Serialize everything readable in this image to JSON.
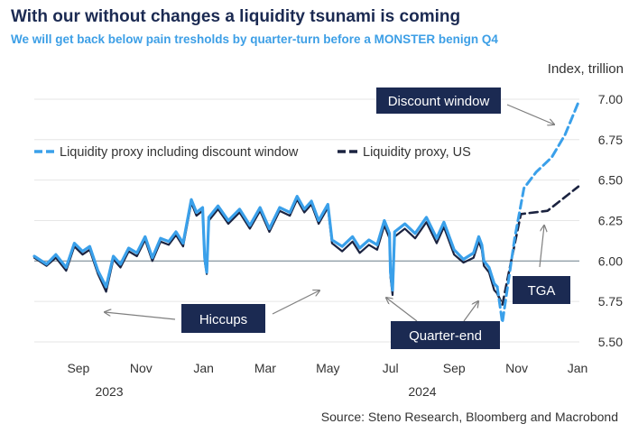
{
  "header": {
    "title": "With our without changes a liquidity tsunami is coming",
    "subtitle": "We will get back below pain tresholds by quarter-turn before a MONSTER benign Q4"
  },
  "source": "Source: Steno Research, Bloomberg and Macrobond",
  "colors": {
    "light_series": "#3aa0ea",
    "dark_series": "#1b2340",
    "box": "#1b2a52",
    "refline": "#7f8f99"
  },
  "chart_data": {
    "type": "line",
    "title": "With our without changes a liquidity tsunami is coming",
    "subtitle": "We will get back below pain tresholds by quarter-turn before a MONSTER benign Q4",
    "ylabel": "Index, trillion",
    "ylim": [
      5.45,
      7.1
    ],
    "y_ticks": [
      "5.50",
      "5.75",
      "6.00",
      "6.25",
      "6.50",
      "6.75",
      "7.00"
    ],
    "x_start": "2023-07-20",
    "x_end": "2025-01-01",
    "x_ticks": [
      "Sep",
      "Nov",
      "Jan",
      "Mar",
      "May",
      "Jul",
      "Sep",
      "Nov",
      "Jan"
    ],
    "x_years": [
      "2023",
      "2024"
    ],
    "reference_line": 6.0,
    "legend": [
      "Liquidity proxy including discount window",
      "Liquidity proxy, US"
    ],
    "series": [
      {
        "name": "Liquidity proxy including discount window",
        "style": "solid",
        "points": [
          [
            "2023-07-20",
            6.03
          ],
          [
            "2023-08-01",
            5.98
          ],
          [
            "2023-08-10",
            6.04
          ],
          [
            "2023-08-20",
            5.96
          ],
          [
            "2023-08-28",
            6.11
          ],
          [
            "2023-09-05",
            6.06
          ],
          [
            "2023-09-12",
            6.09
          ],
          [
            "2023-09-20",
            5.94
          ],
          [
            "2023-09-28",
            5.84
          ],
          [
            "2023-10-05",
            6.03
          ],
          [
            "2023-10-12",
            5.98
          ],
          [
            "2023-10-20",
            6.08
          ],
          [
            "2023-10-28",
            6.05
          ],
          [
            "2023-11-05",
            6.15
          ],
          [
            "2023-11-12",
            6.02
          ],
          [
            "2023-11-20",
            6.14
          ],
          [
            "2023-11-28",
            6.12
          ],
          [
            "2023-12-05",
            6.18
          ],
          [
            "2023-12-12",
            6.11
          ],
          [
            "2023-12-20",
            6.38
          ],
          [
            "2023-12-25",
            6.3
          ],
          [
            "2023-12-31",
            6.33
          ],
          [
            "2024-01-02",
            6.02
          ],
          [
            "2024-01-04",
            5.93
          ],
          [
            "2024-01-06",
            6.27
          ],
          [
            "2024-01-15",
            6.34
          ],
          [
            "2024-01-25",
            6.25
          ],
          [
            "2024-02-05",
            6.32
          ],
          [
            "2024-02-15",
            6.22
          ],
          [
            "2024-02-25",
            6.33
          ],
          [
            "2024-03-05",
            6.2
          ],
          [
            "2024-03-15",
            6.33
          ],
          [
            "2024-03-25",
            6.3
          ],
          [
            "2024-04-01",
            6.4
          ],
          [
            "2024-04-08",
            6.32
          ],
          [
            "2024-04-15",
            6.37
          ],
          [
            "2024-04-22",
            6.25
          ],
          [
            "2024-05-01",
            6.35
          ],
          [
            "2024-05-05",
            6.13
          ],
          [
            "2024-05-15",
            6.09
          ],
          [
            "2024-05-25",
            6.15
          ],
          [
            "2024-06-01",
            6.08
          ],
          [
            "2024-06-10",
            6.13
          ],
          [
            "2024-06-18",
            6.1
          ],
          [
            "2024-06-25",
            6.25
          ],
          [
            "2024-06-30",
            6.17
          ],
          [
            "2024-07-01",
            5.93
          ],
          [
            "2024-07-03",
            5.82
          ],
          [
            "2024-07-05",
            6.18
          ],
          [
            "2024-07-15",
            6.23
          ],
          [
            "2024-07-25",
            6.17
          ],
          [
            "2024-08-05",
            6.27
          ],
          [
            "2024-08-15",
            6.14
          ],
          [
            "2024-08-22",
            6.24
          ],
          [
            "2024-09-01",
            6.07
          ],
          [
            "2024-09-10",
            6.01
          ],
          [
            "2024-09-20",
            6.05
          ],
          [
            "2024-09-25",
            6.15
          ],
          [
            "2024-09-28",
            6.1
          ],
          [
            "2024-09-30",
            6.0
          ],
          [
            "2024-10-05",
            5.96
          ],
          [
            "2024-10-10",
            5.86
          ],
          [
            "2024-10-13",
            5.84
          ]
        ]
      },
      {
        "name": "Liquidity proxy, US",
        "style": "solid",
        "points": [
          [
            "2023-07-20",
            6.02
          ],
          [
            "2023-08-01",
            5.97
          ],
          [
            "2023-08-10",
            6.02
          ],
          [
            "2023-08-20",
            5.94
          ],
          [
            "2023-08-28",
            6.09
          ],
          [
            "2023-09-05",
            6.04
          ],
          [
            "2023-09-12",
            6.07
          ],
          [
            "2023-09-20",
            5.92
          ],
          [
            "2023-09-28",
            5.81
          ],
          [
            "2023-10-05",
            6.01
          ],
          [
            "2023-10-12",
            5.96
          ],
          [
            "2023-10-20",
            6.06
          ],
          [
            "2023-10-28",
            6.03
          ],
          [
            "2023-11-05",
            6.13
          ],
          [
            "2023-11-12",
            6.0
          ],
          [
            "2023-11-20",
            6.12
          ],
          [
            "2023-11-28",
            6.1
          ],
          [
            "2023-12-05",
            6.16
          ],
          [
            "2023-12-12",
            6.09
          ],
          [
            "2023-12-20",
            6.36
          ],
          [
            "2023-12-25",
            6.28
          ],
          [
            "2023-12-31",
            6.31
          ],
          [
            "2024-01-02",
            6.0
          ],
          [
            "2024-01-04",
            5.92
          ],
          [
            "2024-01-06",
            6.25
          ],
          [
            "2024-01-15",
            6.32
          ],
          [
            "2024-01-25",
            6.23
          ],
          [
            "2024-02-05",
            6.3
          ],
          [
            "2024-02-15",
            6.2
          ],
          [
            "2024-02-25",
            6.31
          ],
          [
            "2024-03-05",
            6.18
          ],
          [
            "2024-03-15",
            6.31
          ],
          [
            "2024-03-25",
            6.28
          ],
          [
            "2024-04-01",
            6.38
          ],
          [
            "2024-04-08",
            6.3
          ],
          [
            "2024-04-15",
            6.35
          ],
          [
            "2024-04-22",
            6.23
          ],
          [
            "2024-05-01",
            6.33
          ],
          [
            "2024-05-05",
            6.11
          ],
          [
            "2024-05-15",
            6.06
          ],
          [
            "2024-05-25",
            6.12
          ],
          [
            "2024-06-01",
            6.05
          ],
          [
            "2024-06-10",
            6.1
          ],
          [
            "2024-06-18",
            6.07
          ],
          [
            "2024-06-25",
            6.22
          ],
          [
            "2024-06-30",
            6.14
          ],
          [
            "2024-07-01",
            5.9
          ],
          [
            "2024-07-03",
            5.79
          ],
          [
            "2024-07-05",
            6.15
          ],
          [
            "2024-07-15",
            6.2
          ],
          [
            "2024-07-25",
            6.14
          ],
          [
            "2024-08-05",
            6.24
          ],
          [
            "2024-08-15",
            6.11
          ],
          [
            "2024-08-22",
            6.21
          ],
          [
            "2024-09-01",
            6.04
          ],
          [
            "2024-09-10",
            5.99
          ],
          [
            "2024-09-20",
            6.02
          ],
          [
            "2024-09-25",
            6.12
          ],
          [
            "2024-09-28",
            6.07
          ],
          [
            "2024-09-30",
            5.97
          ],
          [
            "2024-10-05",
            5.93
          ],
          [
            "2024-10-10",
            5.82
          ],
          [
            "2024-10-13",
            5.8
          ]
        ]
      },
      {
        "name": "Liquidity proxy including discount window (projection)",
        "style": "dashed",
        "points": [
          [
            "2024-10-13",
            5.84
          ],
          [
            "2024-10-18",
            5.62
          ],
          [
            "2024-10-24",
            5.88
          ],
          [
            "2024-10-30",
            6.14
          ],
          [
            "2024-11-08",
            6.45
          ],
          [
            "2024-11-20",
            6.55
          ],
          [
            "2024-12-05",
            6.64
          ],
          [
            "2024-12-18",
            6.78
          ],
          [
            "2024-12-31",
            6.98
          ]
        ]
      },
      {
        "name": "Liquidity proxy, US (projection)",
        "style": "dashed",
        "points": [
          [
            "2024-10-13",
            5.8
          ],
          [
            "2024-10-18",
            5.73
          ],
          [
            "2024-10-24",
            5.92
          ],
          [
            "2024-11-05",
            6.29
          ],
          [
            "2024-12-01",
            6.31
          ],
          [
            "2024-12-31",
            6.46
          ]
        ]
      }
    ],
    "annotations": [
      "Discount window",
      "Hiccups",
      "Quarter-end",
      "TGA"
    ]
  }
}
